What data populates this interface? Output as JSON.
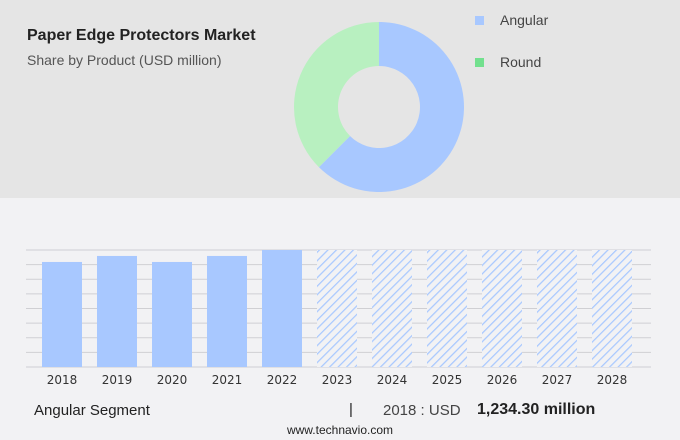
{
  "title": "Paper Edge Protectors Market",
  "subtitle": "Share by Product (USD million)",
  "colors": {
    "angular": "#a8c8ff",
    "round": "#b8f0c0",
    "round_legend": "#72e08e",
    "forecast_hatch": "#a8c8ff"
  },
  "chart_data": [
    {
      "type": "pie",
      "variant": "donut",
      "labels": [
        "Angular",
        "Round"
      ],
      "values": [
        62.5,
        37.5
      ],
      "legend": "right"
    },
    {
      "type": "bar",
      "categories": [
        "2018",
        "2019",
        "2020",
        "2021",
        "2022",
        "2023",
        "2024",
        "2025",
        "2026",
        "2027",
        "2028"
      ],
      "values": [
        1234.3,
        1305,
        1234.3,
        1305,
        1375,
        null,
        null,
        null,
        null,
        null,
        null
      ],
      "forecast_categories": [
        "2023",
        "2024",
        "2025",
        "2026",
        "2027",
        "2028"
      ],
      "grid": true,
      "ylim": [
        0,
        1375
      ]
    }
  ],
  "footer": {
    "segment": "Angular Segment",
    "separator": "|",
    "year_label": "2018 : USD",
    "value": "1,234.30 million",
    "site": "www.technavio.com"
  }
}
